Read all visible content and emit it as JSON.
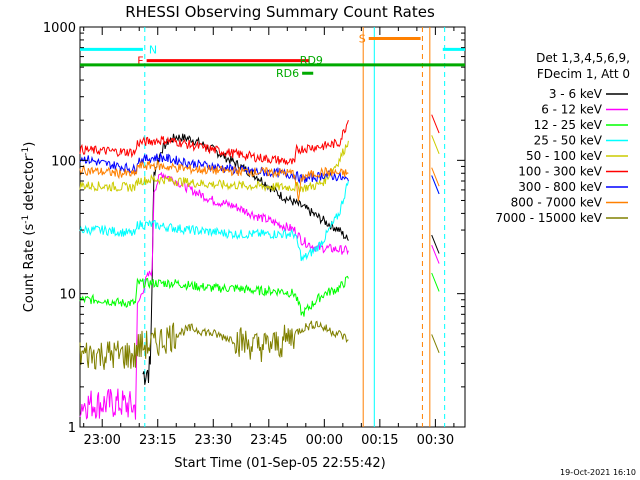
{
  "chart_data": {
    "type": "line",
    "title": "RHESSI Observing Summary Count Rates",
    "xlabel": "Start Time (01-Sep-05 22:55:42)",
    "ylabel_main": "Count Rate (s",
    "ylabel_sup1": "-1",
    "ylabel_mid": " detector",
    "ylabel_sup2": "-1",
    "ylabel_end": ")",
    "yscale": "log",
    "ylim": [
      1,
      1000
    ],
    "xlim_min": [
      -6,
      98
    ],
    "x_tick_labels": [
      {
        "t": 0,
        "label": "23:00"
      },
      {
        "t": 15,
        "label": "23:15"
      },
      {
        "t": 30,
        "label": "23:30"
      },
      {
        "t": 45,
        "label": "23:45"
      },
      {
        "t": 60,
        "label": "00:00"
      },
      {
        "t": 75,
        "label": "00:15"
      },
      {
        "t": 90,
        "label": "00:30"
      }
    ],
    "y_tick_labels": [
      {
        "v": 1,
        "label": "1"
      },
      {
        "v": 10,
        "label": "10"
      },
      {
        "v": 100,
        "label": "100"
      },
      {
        "v": 1000,
        "label": "1000"
      }
    ],
    "legend_header": [
      "Det 1,3,4,5,6,9,",
      "FDecim 1, Att 0"
    ],
    "series": [
      {
        "name": "3 - 6 keV",
        "color": "#000000",
        "x": [
          11,
          12.5,
          13,
          14,
          16,
          18,
          20,
          24,
          30,
          36,
          42,
          48,
          54,
          60,
          64,
          66.5
        ],
        "values": [
          2.5,
          2.7,
          2.8,
          80,
          120,
          140,
          150,
          145,
          120,
          95,
          75,
          55,
          45,
          35,
          30,
          25
        ]
      },
      {
        "name": "6 - 12 keV",
        "color": "#ff00ff",
        "x": [
          -6,
          5,
          9,
          9.5,
          12,
          13.5,
          14,
          16,
          20,
          24,
          30,
          36,
          42,
          48,
          52,
          54,
          58,
          60,
          66.5
        ],
        "values": [
          1.5,
          1.5,
          1.4,
          8,
          13,
          15,
          60,
          80,
          70,
          60,
          50,
          45,
          38,
          33,
          30,
          25,
          22,
          22,
          21
        ]
      },
      {
        "name": "12 - 25 keV",
        "color": "#00ff00",
        "x": [
          -6,
          0,
          5,
          9,
          9.5,
          14,
          16,
          20,
          24,
          30,
          36,
          42,
          48,
          52,
          54,
          58,
          60,
          64,
          66.5
        ],
        "values": [
          9,
          9,
          8.5,
          8.5,
          12,
          12,
          12,
          12,
          11.5,
          11,
          11,
          10.5,
          10.5,
          10,
          7,
          9,
          10,
          11,
          13
        ]
      },
      {
        "name": "25 - 50 keV",
        "color": "#00ffff",
        "x": [
          -6,
          0,
          5,
          9,
          9.5,
          14,
          16,
          20,
          24,
          30,
          36,
          42,
          48,
          52,
          54,
          58,
          60,
          64,
          66.5
        ],
        "values": [
          30,
          30,
          29,
          28,
          33,
          33,
          32,
          31,
          30,
          29,
          28,
          28,
          28,
          28,
          18,
          22,
          26,
          40,
          70
        ]
      },
      {
        "name": "50 - 100 keV",
        "color": "#cccc00",
        "x": [
          -6,
          0,
          5,
          9,
          9.5,
          14,
          16,
          20,
          24,
          30,
          36,
          42,
          48,
          52,
          54,
          58,
          60,
          64,
          66.5
        ],
        "values": [
          65,
          64,
          63,
          63,
          70,
          72,
          72,
          70,
          68,
          66,
          65,
          64,
          63,
          63,
          62,
          65,
          70,
          100,
          140
        ]
      },
      {
        "name": "100 - 300 keV",
        "color": "#ff0000",
        "x": [
          -6,
          0,
          5,
          9,
          9.5,
          14,
          16,
          20,
          24,
          30,
          36,
          42,
          48,
          52,
          52.5,
          56,
          60,
          64,
          66.5
        ],
        "values": [
          120,
          118,
          116,
          115,
          135,
          140,
          142,
          138,
          130,
          120,
          112,
          105,
          100,
          95,
          120,
          125,
          128,
          135,
          200
        ]
      },
      {
        "name": "300 - 800 keV",
        "color": "#0000ff",
        "x": [
          -6,
          0,
          5,
          9,
          9.5,
          14,
          16,
          20,
          24,
          30,
          36,
          42,
          48,
          52,
          54,
          58,
          60,
          64,
          66.5
        ],
        "values": [
          105,
          95,
          90,
          85,
          100,
          105,
          105,
          100,
          95,
          90,
          85,
          82,
          80,
          78,
          72,
          75,
          78,
          75,
          70
        ]
      },
      {
        "name": "800 - 7000 keV",
        "color": "#ff8000",
        "x": [
          -6,
          0,
          5,
          9,
          9.5,
          14,
          16,
          20,
          24,
          30,
          36,
          42,
          48,
          52,
          53,
          54,
          58,
          60,
          64,
          66.5
        ],
        "values": [
          85,
          82,
          80,
          78,
          90,
          92,
          90,
          88,
          86,
          84,
          83,
          82,
          81,
          80,
          50,
          75,
          80,
          82,
          80,
          80
        ]
      },
      {
        "name": "7000 - 15000 keV",
        "color": "#808000",
        "x": [
          -6,
          0,
          5,
          9,
          9.5,
          14,
          16,
          20,
          24,
          30,
          36,
          42,
          48,
          52,
          54,
          58,
          60,
          64,
          66.5
        ],
        "values": [
          3.5,
          3.5,
          3.5,
          3.4,
          4,
          4.2,
          4.5,
          5,
          5.5,
          5,
          4.5,
          4,
          4.2,
          5,
          5.5,
          6,
          5.5,
          5,
          4.5
        ]
      }
    ],
    "flags": [
      {
        "label": "N",
        "color": "#00ffff",
        "y": 680,
        "from": -6,
        "to": 11,
        "label_side": "right"
      },
      {
        "label": "F",
        "color": "#ff0000",
        "y": 560,
        "from": 12,
        "to": 56,
        "label_side": "left"
      },
      {
        "label": "RD9",
        "color": "#00aa00",
        "y": 520,
        "from": -6,
        "to": 98,
        "label_side": "rightmid"
      },
      {
        "label": "RD6",
        "color": "#00aa00",
        "y": 450,
        "from": 54,
        "to": 57,
        "label_side": "left"
      },
      {
        "label": "S",
        "color": "#ff8000",
        "y": 820,
        "from": 72,
        "to": 86,
        "label_side": "left"
      },
      {
        "label": "",
        "color": "#00ffff",
        "y": 680,
        "from": 92,
        "to": 98,
        "label_side": "none"
      }
    ],
    "vlines": [
      {
        "t": 11.5,
        "color": "#00ffff",
        "dashed": true
      },
      {
        "t": 70.5,
        "color": "#ff8000",
        "dashed": false
      },
      {
        "t": 73.5,
        "color": "#00ffff",
        "dashed": false
      },
      {
        "t": 86.5,
        "color": "#ff8000",
        "dashed": true
      },
      {
        "t": 88.5,
        "color": "#ff8000",
        "dashed": false
      },
      {
        "t": 92.5,
        "color": "#00ffff",
        "dashed": true
      }
    ],
    "footer_date": "19-Oct-2021 16:10"
  }
}
